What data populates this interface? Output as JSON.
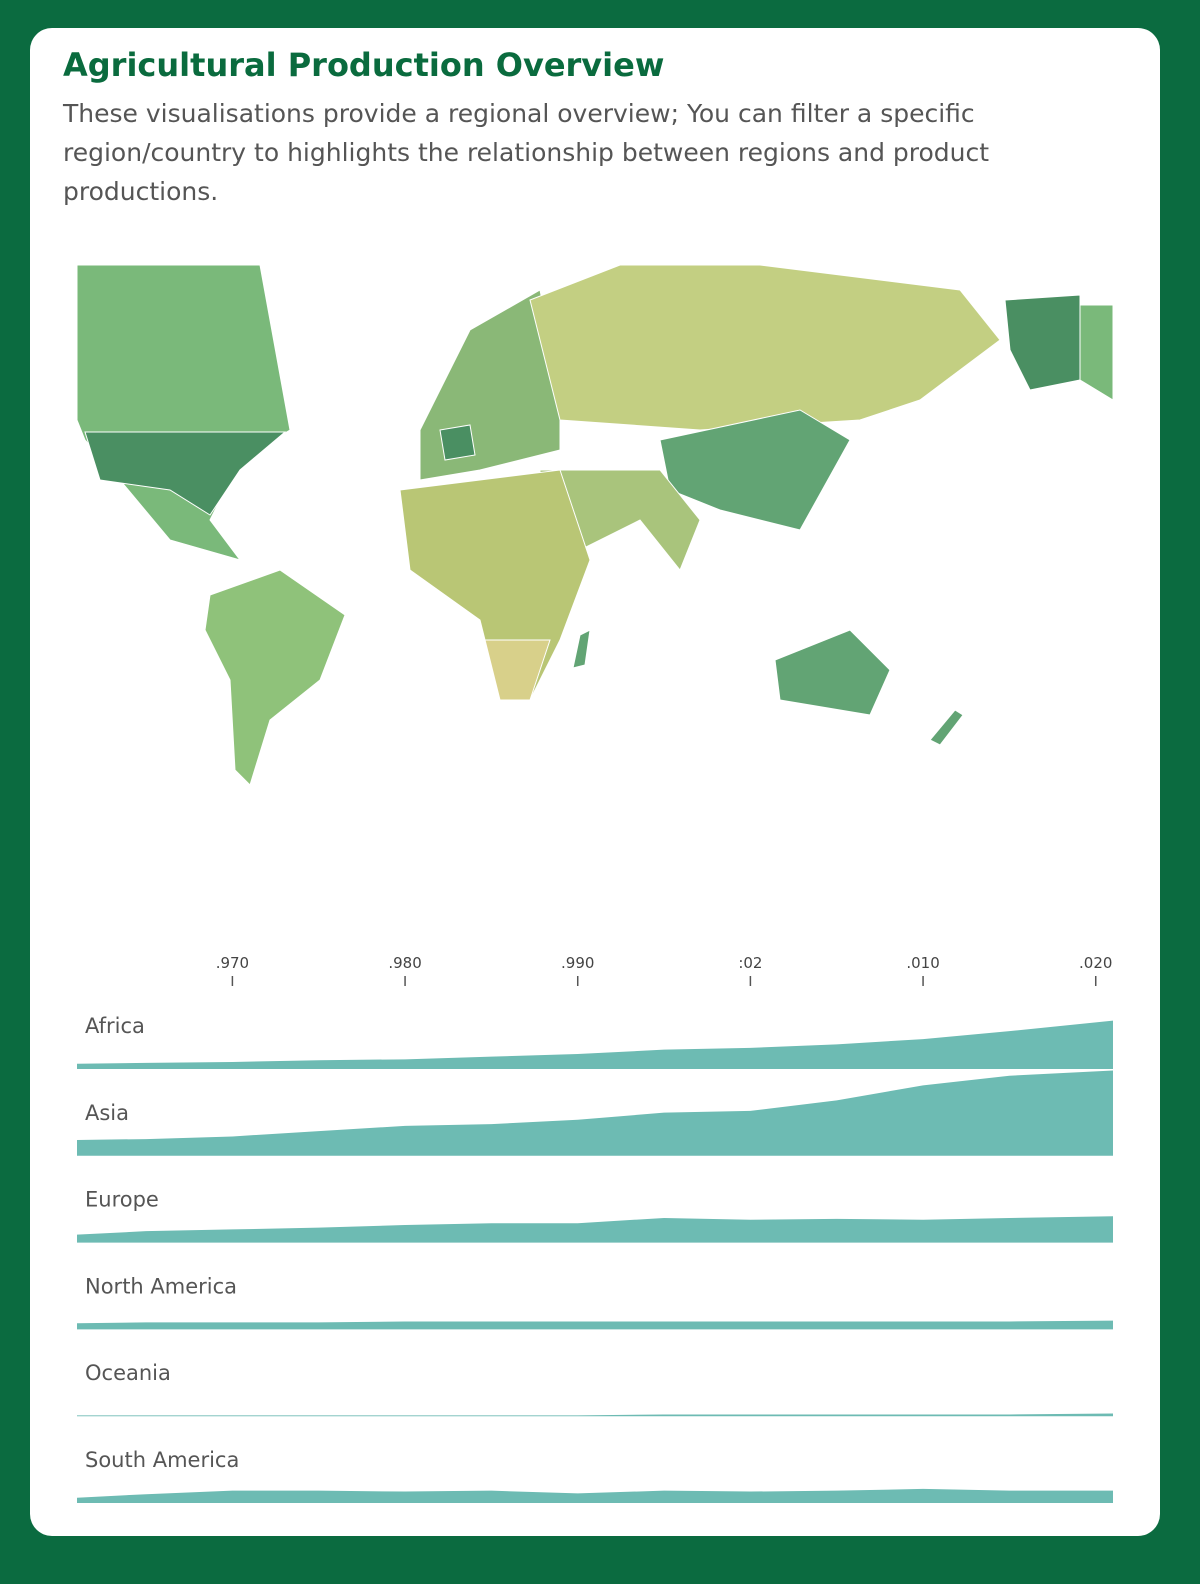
{
  "header": {
    "title": "Agricultural Production Overview",
    "subtitle": "These visualisations provide a regional overview; You can filter a specific region/country to highlights the relationship between regions and product productions."
  },
  "chart_data": [
    {
      "type": "area",
      "x": [
        1961,
        1965,
        1970,
        1975,
        1980,
        1985,
        1990,
        1995,
        2000,
        2005,
        2010,
        2015,
        2021
      ],
      "xlim": [
        1961,
        2021
      ],
      "xticks": [
        {
          "value": 1970,
          "label": ".970"
        },
        {
          "value": 1980,
          "label": ".980"
        },
        {
          "value": 1990,
          "label": ".990"
        },
        {
          "value": 2000,
          "label": ":02"
        },
        {
          "value": 2010,
          "label": ".010"
        },
        {
          "value": 2020,
          "label": ".020"
        }
      ],
      "ylim": [
        0,
        100
      ],
      "series": [
        {
          "name": "Africa",
          "color": "#6dbbb3",
          "values": [
            6,
            7,
            8,
            10,
            11,
            14,
            17,
            22,
            24,
            28,
            34,
            43,
            55
          ]
        },
        {
          "name": "Asia",
          "color": "#6dbbb3",
          "values": [
            18,
            19,
            22,
            28,
            34,
            36,
            41,
            49,
            51,
            63,
            80,
            91,
            97
          ]
        },
        {
          "name": "Europe",
          "color": "#6dbbb3",
          "values": [
            9,
            13,
            15,
            17,
            20,
            22,
            22,
            28,
            26,
            27,
            26,
            28,
            30
          ]
        },
        {
          "name": "North America",
          "color": "#6dbbb3",
          "values": [
            7,
            8,
            8,
            8,
            9,
            9,
            9,
            9,
            9,
            9,
            9,
            9,
            10
          ]
        },
        {
          "name": "Oceania",
          "color": "#6dbbb3",
          "values": [
            1,
            1,
            1,
            1,
            1,
            1,
            1,
            2,
            2,
            2,
            2,
            2,
            3
          ]
        },
        {
          "name": "South America",
          "color": "#6dbbb3",
          "values": [
            6,
            10,
            14,
            14,
            13,
            14,
            11,
            14,
            13,
            14,
            16,
            14,
            14
          ]
        }
      ]
    }
  ]
}
